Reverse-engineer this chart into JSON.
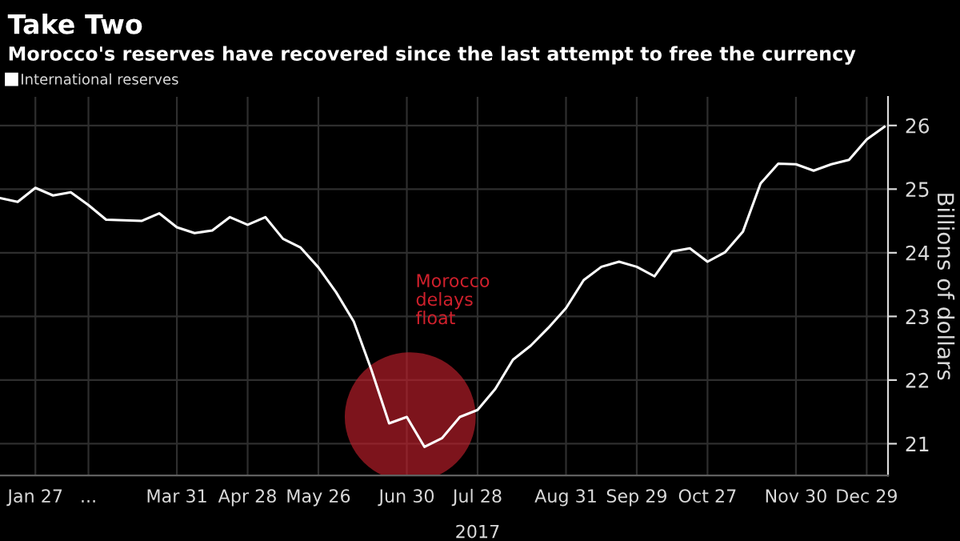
{
  "chart_data": {
    "type": "line",
    "title": "Take Two",
    "subtitle": "Morocco's reserves have recovered since the last attempt to free the currency",
    "ylabel": "Billions of dollars",
    "categories": [
      null,
      null,
      "Jan 27",
      null,
      null,
      "...",
      null,
      null,
      null,
      null,
      "Mar 31",
      null,
      null,
      null,
      "Apr 28",
      null,
      null,
      null,
      "May 26",
      null,
      null,
      null,
      null,
      "Jun 30",
      null,
      null,
      null,
      "Jul 28",
      null,
      null,
      null,
      null,
      "Aug 31",
      null,
      null,
      null,
      "Sep 29",
      null,
      null,
      null,
      "Oct 27",
      null,
      null,
      null,
      null,
      "Nov 30",
      null,
      null,
      null,
      "Dec 29",
      null
    ],
    "series": [
      {
        "name": "International reserves",
        "color": "#ffffff",
        "values": [
          24.86,
          24.8,
          25.02,
          24.9,
          24.95,
          24.75,
          24.52,
          24.51,
          24.5,
          24.62,
          24.4,
          24.31,
          24.35,
          24.56,
          24.44,
          24.56,
          24.22,
          24.08,
          23.77,
          23.38,
          22.92,
          22.16,
          21.32,
          21.42,
          20.95,
          21.09,
          21.42,
          21.53,
          21.86,
          22.32,
          22.54,
          22.82,
          23.13,
          23.57,
          23.78,
          23.86,
          23.78,
          23.63,
          24.02,
          24.07,
          23.86,
          24.01,
          24.33,
          25.09,
          25.4,
          25.39,
          25.29,
          25.39,
          25.46,
          25.78,
          25.98
        ]
      }
    ],
    "ylim": [
      20.5,
      26.45
    ],
    "yticks": [
      21,
      22,
      23,
      24,
      25,
      26
    ],
    "grid": true,
    "legend": "top left",
    "marker": "none",
    "line_style": "solid",
    "annotations": [
      "Morocco\ndelays\nfloat",
      "2017"
    ]
  }
}
